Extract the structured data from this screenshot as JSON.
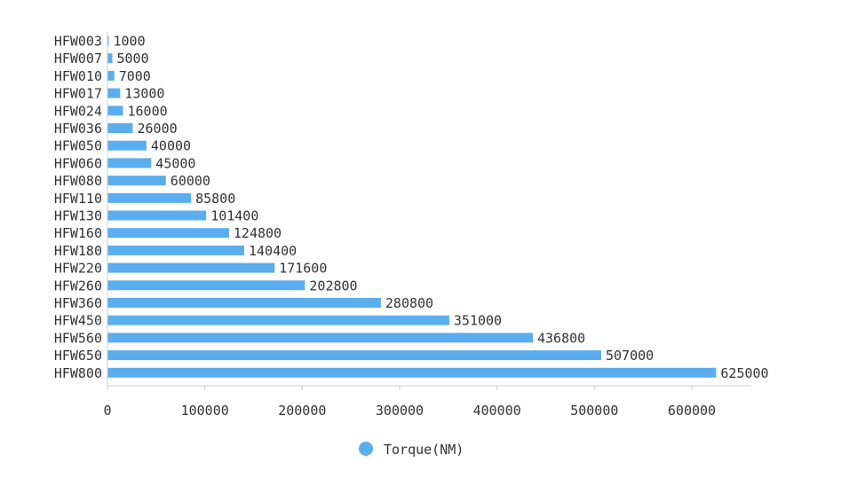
{
  "chart_data": {
    "type": "bar",
    "orientation": "horizontal",
    "title": "",
    "xlabel": "",
    "ylabel": "",
    "categories": [
      "HFW003",
      "HFW007",
      "HFW010",
      "HFW017",
      "HFW024",
      "HFW036",
      "HFW050",
      "HFW060",
      "HFW080",
      "HFW110",
      "HFW130",
      "HFW160",
      "HFW180",
      "HFW220",
      "HFW260",
      "HFW360",
      "HFW450",
      "HFW560",
      "HFW650",
      "HFW800"
    ],
    "series": [
      {
        "name": "Torque(NM)",
        "color": "#5aaef0",
        "values": [
          1000,
          5000,
          7000,
          13000,
          16000,
          26000,
          40000,
          45000,
          60000,
          85800,
          101400,
          124800,
          140400,
          171600,
          202800,
          280800,
          351000,
          436800,
          507000,
          625000
        ]
      }
    ],
    "xlim": [
      0,
      660000
    ],
    "xticks": [
      0,
      100000,
      200000,
      300000,
      400000,
      500000,
      600000
    ],
    "grid": false,
    "legend_position": "bottom-center",
    "data_labels": true
  }
}
